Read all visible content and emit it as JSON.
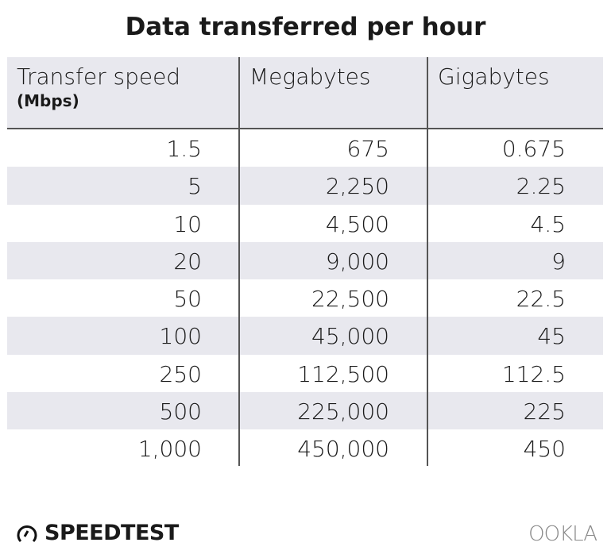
{
  "title": "Data transferred per hour",
  "chart_data": {
    "type": "table",
    "title": "Data transferred per hour",
    "columns": [
      {
        "label": "Transfer speed",
        "sublabel": "(Mbps)"
      },
      {
        "label": "Megabytes"
      },
      {
        "label": "Gigabytes"
      }
    ],
    "rows": [
      [
        "1.5",
        "675",
        "0.675"
      ],
      [
        "5",
        "2,250",
        "2.25"
      ],
      [
        "10",
        "4,500",
        "4.5"
      ],
      [
        "20",
        "9,000",
        "9"
      ],
      [
        "50",
        "22,500",
        "22.5"
      ],
      [
        "100",
        "45,000",
        "45"
      ],
      [
        "250",
        "112,500",
        "112.5"
      ],
      [
        "500",
        "225,000",
        "225"
      ],
      [
        "1,000",
        "450,000",
        "450"
      ]
    ]
  },
  "footer": {
    "left_logo": "SPEEDTEST",
    "right_logo": "OOKLA"
  },
  "colors": {
    "header_bg": "#e8e8ee",
    "stripe": "#e8e8ee",
    "lines": "#555555"
  }
}
